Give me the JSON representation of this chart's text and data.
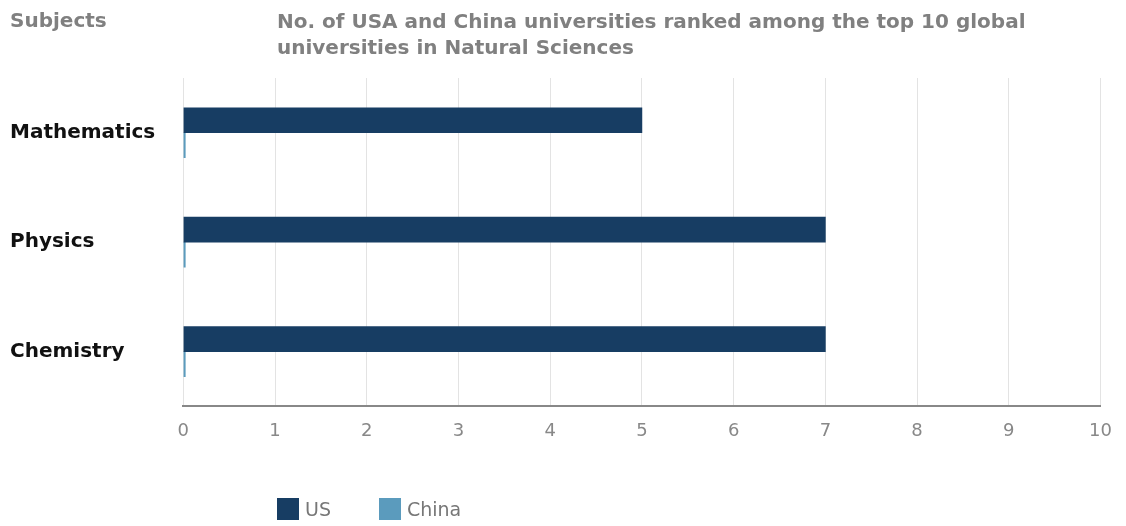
{
  "chart_data": {
    "type": "bar",
    "orientation": "horizontal",
    "title": "No. of USA and China universities ranked among the top 10 global universities in Natural Sciences",
    "ylabel": "Subjects",
    "categories": [
      "Mathematics",
      "Physics",
      "Chemistry"
    ],
    "series": [
      {
        "name": "US",
        "color": "#173d63",
        "values": [
          5,
          7,
          7
        ]
      },
      {
        "name": "China",
        "color": "#5b9bbd",
        "values": [
          0,
          0,
          0
        ]
      }
    ],
    "xlim": [
      0,
      10
    ],
    "xticks": [
      0,
      1,
      2,
      3,
      4,
      5,
      6,
      7,
      8,
      9,
      10
    ],
    "grid": "x",
    "legend": "bottom left"
  }
}
